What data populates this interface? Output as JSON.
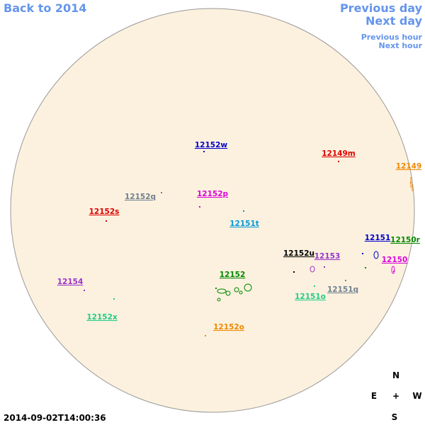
{
  "nav": {
    "back": "Back to 2014",
    "previous_day": "Previous day",
    "next_day": "Next day",
    "previous_hour": "Previous hour",
    "next_hour": "Next hour"
  },
  "regions": [
    {
      "label": "12152w",
      "color": "#0000cc"
    },
    {
      "label": "12149m",
      "color": "#dd0000"
    },
    {
      "label": "12149",
      "color": "#ee8800"
    },
    {
      "label": "12152q",
      "color": "#708090"
    },
    {
      "label": "12152p",
      "color": "#dd00dd"
    },
    {
      "label": "12152s",
      "color": "#dd0000"
    },
    {
      "label": "12151t",
      "color": "#0099dd"
    },
    {
      "label": "12151",
      "color": "#0000cc"
    },
    {
      "label": "12150r",
      "color": "#008800"
    },
    {
      "label": "12152u",
      "color": "#000000"
    },
    {
      "label": "12153",
      "color": "#9933cc"
    },
    {
      "label": "12150",
      "color": "#dd00dd"
    },
    {
      "label": "12154",
      "color": "#9933cc"
    },
    {
      "label": "12152",
      "color": "#008800"
    },
    {
      "label": "12151q",
      "color": "#708090"
    },
    {
      "label": "12151o",
      "color": "#22cc88"
    },
    {
      "label": "12152x",
      "color": "#22cc88"
    },
    {
      "label": "12152o",
      "color": "#ee8800"
    }
  ],
  "timestamp": "2014-09-02T14:00:36",
  "compass": {
    "north": "N",
    "east": "E",
    "center": "+",
    "west": "W",
    "south": "S"
  }
}
